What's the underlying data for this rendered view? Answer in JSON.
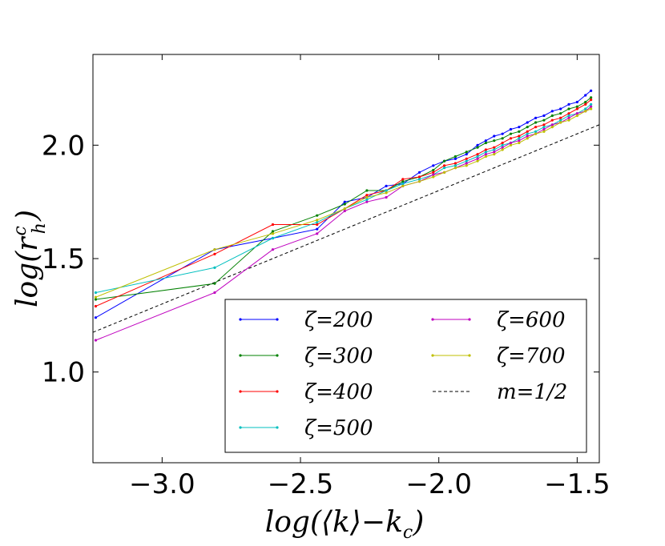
{
  "chart_data": {
    "type": "line",
    "xlabel": "log(⟨k⟩−k",
    "xlabel_sub": "c",
    "xlabel_close": ")",
    "ylabel": "log(r",
    "ylabel_sup": "c",
    "ylabel_sub": "h",
    "ylabel_close": ")",
    "xlim": [
      -3.25,
      -1.42
    ],
    "ylim": [
      0.6,
      2.4
    ],
    "xticks": [
      -3.0,
      -2.5,
      -2.0,
      -1.5
    ],
    "xtick_labels": [
      "−3.0",
      "−2.5",
      "−2.0",
      "−1.5"
    ],
    "yticks": [
      1.0,
      1.5,
      2.0
    ],
    "ytick_labels": [
      "1.0",
      "1.5",
      "2.0"
    ],
    "grid": false,
    "legend_position": "lower-right",
    "series": [
      {
        "name": "ζ=200",
        "color": "#0000ff",
        "points": [
          [
            -3.24,
            1.24
          ],
          [
            -2.81,
            1.54
          ],
          [
            -2.6,
            1.59
          ],
          [
            -2.44,
            1.63
          ],
          [
            -2.34,
            1.75
          ],
          [
            -2.26,
            1.77
          ],
          [
            -2.19,
            1.82
          ],
          [
            -2.13,
            1.83
          ],
          [
            -2.07,
            1.88
          ],
          [
            -2.02,
            1.91
          ],
          [
            -1.98,
            1.93
          ],
          [
            -1.94,
            1.94
          ],
          [
            -1.9,
            1.96
          ],
          [
            -1.86,
            2.0
          ],
          [
            -1.83,
            2.02
          ],
          [
            -1.8,
            2.04
          ],
          [
            -1.77,
            2.05
          ],
          [
            -1.74,
            2.07
          ],
          [
            -1.71,
            2.08
          ],
          [
            -1.68,
            2.1
          ],
          [
            -1.65,
            2.12
          ],
          [
            -1.62,
            2.13
          ],
          [
            -1.59,
            2.15
          ],
          [
            -1.56,
            2.16
          ],
          [
            -1.53,
            2.18
          ],
          [
            -1.5,
            2.19
          ],
          [
            -1.47,
            2.22
          ],
          [
            -1.45,
            2.24
          ]
        ]
      },
      {
        "name": "ζ=300",
        "color": "#008000",
        "points": [
          [
            -3.24,
            1.32
          ],
          [
            -2.81,
            1.39
          ],
          [
            -2.6,
            1.62
          ],
          [
            -2.44,
            1.69
          ],
          [
            -2.34,
            1.74
          ],
          [
            -2.26,
            1.8
          ],
          [
            -2.19,
            1.8
          ],
          [
            -2.13,
            1.84
          ],
          [
            -2.07,
            1.86
          ],
          [
            -2.02,
            1.89
          ],
          [
            -1.98,
            1.93
          ],
          [
            -1.94,
            1.95
          ],
          [
            -1.9,
            1.97
          ],
          [
            -1.86,
            1.99
          ],
          [
            -1.83,
            2.01
          ],
          [
            -1.8,
            2.02
          ],
          [
            -1.77,
            2.03
          ],
          [
            -1.74,
            2.05
          ],
          [
            -1.71,
            2.06
          ],
          [
            -1.68,
            2.08
          ],
          [
            -1.65,
            2.1
          ],
          [
            -1.62,
            2.11
          ],
          [
            -1.59,
            2.13
          ],
          [
            -1.56,
            2.14
          ],
          [
            -1.53,
            2.16
          ],
          [
            -1.5,
            2.17
          ],
          [
            -1.47,
            2.19
          ],
          [
            -1.45,
            2.21
          ]
        ]
      },
      {
        "name": "ζ=400",
        "color": "#ff0000",
        "points": [
          [
            -3.24,
            1.29
          ],
          [
            -2.81,
            1.52
          ],
          [
            -2.6,
            1.65
          ],
          [
            -2.44,
            1.65
          ],
          [
            -2.34,
            1.72
          ],
          [
            -2.26,
            1.78
          ],
          [
            -2.19,
            1.8
          ],
          [
            -2.13,
            1.85
          ],
          [
            -2.07,
            1.86
          ],
          [
            -2.02,
            1.88
          ],
          [
            -1.98,
            1.91
          ],
          [
            -1.94,
            1.92
          ],
          [
            -1.9,
            1.94
          ],
          [
            -1.86,
            1.96
          ],
          [
            -1.83,
            1.98
          ],
          [
            -1.8,
            1.99
          ],
          [
            -1.77,
            2.01
          ],
          [
            -1.74,
            2.03
          ],
          [
            -1.71,
            2.04
          ],
          [
            -1.68,
            2.06
          ],
          [
            -1.65,
            2.08
          ],
          [
            -1.62,
            2.09
          ],
          [
            -1.59,
            2.11
          ],
          [
            -1.56,
            2.12
          ],
          [
            -1.53,
            2.14
          ],
          [
            -1.5,
            2.16
          ],
          [
            -1.47,
            2.18
          ],
          [
            -1.45,
            2.2
          ]
        ]
      },
      {
        "name": "ζ=500",
        "color": "#00bfbf",
        "points": [
          [
            -3.24,
            1.35
          ],
          [
            -2.81,
            1.46
          ],
          [
            -2.6,
            1.59
          ],
          [
            -2.44,
            1.66
          ],
          [
            -2.34,
            1.72
          ],
          [
            -2.26,
            1.76
          ],
          [
            -2.19,
            1.8
          ],
          [
            -2.13,
            1.83
          ],
          [
            -2.07,
            1.85
          ],
          [
            -2.02,
            1.87
          ],
          [
            -1.98,
            1.9
          ],
          [
            -1.94,
            1.91
          ],
          [
            -1.9,
            1.93
          ],
          [
            -1.86,
            1.95
          ],
          [
            -1.83,
            1.97
          ],
          [
            -1.8,
            1.98
          ],
          [
            -1.77,
            2.0
          ],
          [
            -1.74,
            2.01
          ],
          [
            -1.71,
            2.03
          ],
          [
            -1.68,
            2.05
          ],
          [
            -1.65,
            2.06
          ],
          [
            -1.62,
            2.08
          ],
          [
            -1.59,
            2.09
          ],
          [
            -1.56,
            2.11
          ],
          [
            -1.53,
            2.13
          ],
          [
            -1.5,
            2.14
          ],
          [
            -1.47,
            2.16
          ],
          [
            -1.45,
            2.18
          ]
        ]
      },
      {
        "name": "ζ=600",
        "color": "#bf00bf",
        "points": [
          [
            -3.24,
            1.14
          ],
          [
            -2.81,
            1.35
          ],
          [
            -2.6,
            1.54
          ],
          [
            -2.44,
            1.61
          ],
          [
            -2.34,
            1.71
          ],
          [
            -2.26,
            1.75
          ],
          [
            -2.19,
            1.77
          ],
          [
            -2.13,
            1.82
          ],
          [
            -2.07,
            1.84
          ],
          [
            -2.02,
            1.87
          ],
          [
            -1.98,
            1.88
          ],
          [
            -1.94,
            1.9
          ],
          [
            -1.9,
            1.92
          ],
          [
            -1.86,
            1.94
          ],
          [
            -1.83,
            1.96
          ],
          [
            -1.8,
            1.97
          ],
          [
            -1.77,
            1.99
          ],
          [
            -1.74,
            2.01
          ],
          [
            -1.71,
            2.02
          ],
          [
            -1.68,
            2.04
          ],
          [
            -1.65,
            2.05
          ],
          [
            -1.62,
            2.07
          ],
          [
            -1.59,
            2.09
          ],
          [
            -1.56,
            2.1
          ],
          [
            -1.53,
            2.12
          ],
          [
            -1.5,
            2.14
          ],
          [
            -1.47,
            2.15
          ],
          [
            -1.45,
            2.17
          ]
        ]
      },
      {
        "name": "ζ=700",
        "color": "#bfbf00",
        "points": [
          [
            -3.24,
            1.33
          ],
          [
            -2.81,
            1.54
          ],
          [
            -2.6,
            1.61
          ],
          [
            -2.44,
            1.67
          ],
          [
            -2.34,
            1.72
          ],
          [
            -2.26,
            1.77
          ],
          [
            -2.19,
            1.79
          ],
          [
            -2.13,
            1.82
          ],
          [
            -2.07,
            1.84
          ],
          [
            -2.02,
            1.86
          ],
          [
            -1.98,
            1.88
          ],
          [
            -1.94,
            1.9
          ],
          [
            -1.9,
            1.91
          ],
          [
            -1.86,
            1.93
          ],
          [
            -1.83,
            1.95
          ],
          [
            -1.8,
            1.96
          ],
          [
            -1.77,
            1.98
          ],
          [
            -1.74,
            2.0
          ],
          [
            -1.71,
            2.01
          ],
          [
            -1.68,
            2.03
          ],
          [
            -1.65,
            2.05
          ],
          [
            -1.62,
            2.06
          ],
          [
            -1.59,
            2.08
          ],
          [
            -1.56,
            2.1
          ],
          [
            -1.53,
            2.11
          ],
          [
            -1.5,
            2.13
          ],
          [
            -1.47,
            2.15
          ],
          [
            -1.45,
            2.16
          ]
        ]
      }
    ],
    "reference_line": {
      "name": "m=1/2",
      "color": "#000000",
      "slope": 0.5,
      "intercept": 2.8,
      "x": [
        -3.25,
        -1.42
      ]
    }
  }
}
